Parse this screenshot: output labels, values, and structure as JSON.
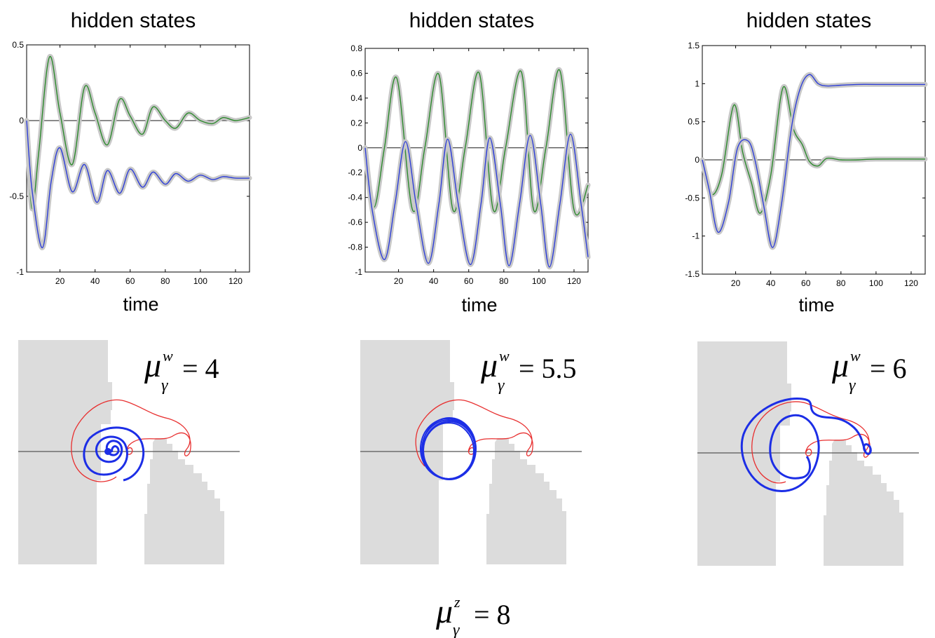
{
  "colors": {
    "series_green": "#2e8b2e",
    "series_blue": "#2f3fd8",
    "uncertainty_band": "#c8c8c8",
    "obstacle": "#dcdcdc",
    "trajectory_red": "#e83030",
    "trajectory_blue": "#1c2ee6"
  },
  "chart_data": [
    {
      "type": "line",
      "title": "hidden states",
      "xlabel": "time",
      "ylabel": "",
      "xlim": [
        1,
        128
      ],
      "ylim": [
        -1,
        0.5
      ],
      "xticks": [
        "20",
        "40",
        "60",
        "80",
        "100",
        "120"
      ],
      "yticks": [
        "0.5",
        "0",
        "-0.5",
        "-1"
      ],
      "grid": false,
      "series": [
        {
          "color": "green",
          "x": [
            0,
            4,
            8,
            14,
            20,
            27,
            34,
            40,
            47,
            54,
            60,
            67,
            73,
            80,
            86,
            93,
            100,
            107,
            113,
            120,
            128
          ],
          "values": [
            0,
            -0.58,
            -0.2,
            0.42,
            0.05,
            -0.29,
            0.22,
            0.05,
            -0.16,
            0.14,
            0.03,
            -0.09,
            0.09,
            0.0,
            -0.05,
            0.05,
            0.0,
            -0.02,
            0.02,
            0.0,
            0.02
          ]
        },
        {
          "color": "blue",
          "x": [
            0,
            4,
            10,
            15,
            20,
            27,
            34,
            41,
            47,
            54,
            60,
            67,
            73,
            80,
            86,
            93,
            100,
            107,
            113,
            120,
            128
          ],
          "values": [
            0,
            -0.45,
            -0.84,
            -0.4,
            -0.18,
            -0.47,
            -0.29,
            -0.54,
            -0.33,
            -0.48,
            -0.32,
            -0.44,
            -0.34,
            -0.42,
            -0.35,
            -0.4,
            -0.36,
            -0.39,
            -0.37,
            -0.38,
            -0.38
          ]
        }
      ]
    },
    {
      "type": "line",
      "title": "hidden states",
      "xlabel": "time",
      "ylabel": "",
      "xlim": [
        1,
        128
      ],
      "ylim": [
        -1,
        0.8
      ],
      "xticks": [
        "20",
        "40",
        "60",
        "80",
        "100",
        "120"
      ],
      "yticks": [
        "0.8",
        "0.6",
        "0.4",
        "0.2",
        "0",
        "-0.2",
        "-0.4",
        "-0.6",
        "-0.8",
        "-1"
      ],
      "grid": false,
      "series": [
        {
          "color": "green",
          "x": [
            0,
            6,
            12,
            19,
            28,
            35,
            43,
            51,
            58,
            66,
            74,
            81,
            90,
            97,
            104,
            112,
            120,
            128
          ],
          "values": [
            0,
            -0.48,
            0.0,
            0.56,
            -0.5,
            0.0,
            0.59,
            -0.5,
            0.0,
            0.6,
            -0.5,
            0.0,
            0.61,
            -0.5,
            0.0,
            0.62,
            -0.5,
            -0.3
          ]
        },
        {
          "color": "blue",
          "x": [
            0,
            5,
            12,
            18,
            24,
            30,
            37,
            43,
            48,
            54,
            61,
            67,
            72,
            78,
            83,
            89,
            95,
            101,
            106,
            112,
            118,
            124,
            128
          ],
          "values": [
            0,
            -0.5,
            -0.9,
            -0.45,
            0.05,
            -0.45,
            -0.93,
            -0.45,
            0.07,
            -0.45,
            -0.94,
            -0.45,
            0.08,
            -0.45,
            -0.95,
            -0.45,
            0.1,
            -0.45,
            -0.96,
            -0.45,
            0.11,
            -0.45,
            -0.88
          ]
        }
      ]
    },
    {
      "type": "line",
      "title": "hidden states",
      "xlabel": "time",
      "ylabel": "",
      "xlim": [
        1,
        128
      ],
      "ylim": [
        -1.5,
        1.5
      ],
      "xticks": [
        "20",
        "40",
        "60",
        "80",
        "100",
        "120"
      ],
      "yticks": [
        "1.5",
        "1",
        "0.5",
        "0",
        "-0.5",
        "-1",
        "-1.5"
      ],
      "grid": false,
      "series": [
        {
          "color": "green",
          "x": [
            0,
            6,
            12,
            19,
            24,
            29,
            34,
            40,
            47,
            53,
            58,
            62,
            67,
            72,
            80,
            90,
            100,
            128
          ],
          "values": [
            0,
            -0.45,
            -0.2,
            0.72,
            0.1,
            -0.3,
            -0.7,
            -0.2,
            0.95,
            0.4,
            0.2,
            -0.02,
            -0.08,
            0.02,
            0.0,
            0.0,
            0.01,
            0.01
          ]
        },
        {
          "color": "blue",
          "x": [
            0,
            5,
            10,
            16,
            21,
            27,
            31,
            36,
            41,
            46,
            52,
            57,
            62,
            67,
            72,
            80,
            90,
            100,
            128
          ],
          "values": [
            0,
            -0.4,
            -0.95,
            -0.55,
            0.15,
            0.25,
            0.0,
            -0.6,
            -1.15,
            -0.6,
            0.45,
            0.95,
            1.12,
            1.0,
            0.97,
            0.98,
            0.99,
            0.99,
            0.99
          ]
        }
      ]
    }
  ],
  "equations": [
    {
      "mu": "μ",
      "sub": "γ",
      "sup": "w",
      "value": "= 4"
    },
    {
      "mu": "μ",
      "sub": "γ",
      "sup": "w",
      "value": "= 5.5"
    },
    {
      "mu": "μ",
      "sub": "γ",
      "sup": "w",
      "value": "= 6"
    },
    {
      "mu": "μ",
      "sub": "γ",
      "sup": "z",
      "value": "= 8"
    }
  ]
}
